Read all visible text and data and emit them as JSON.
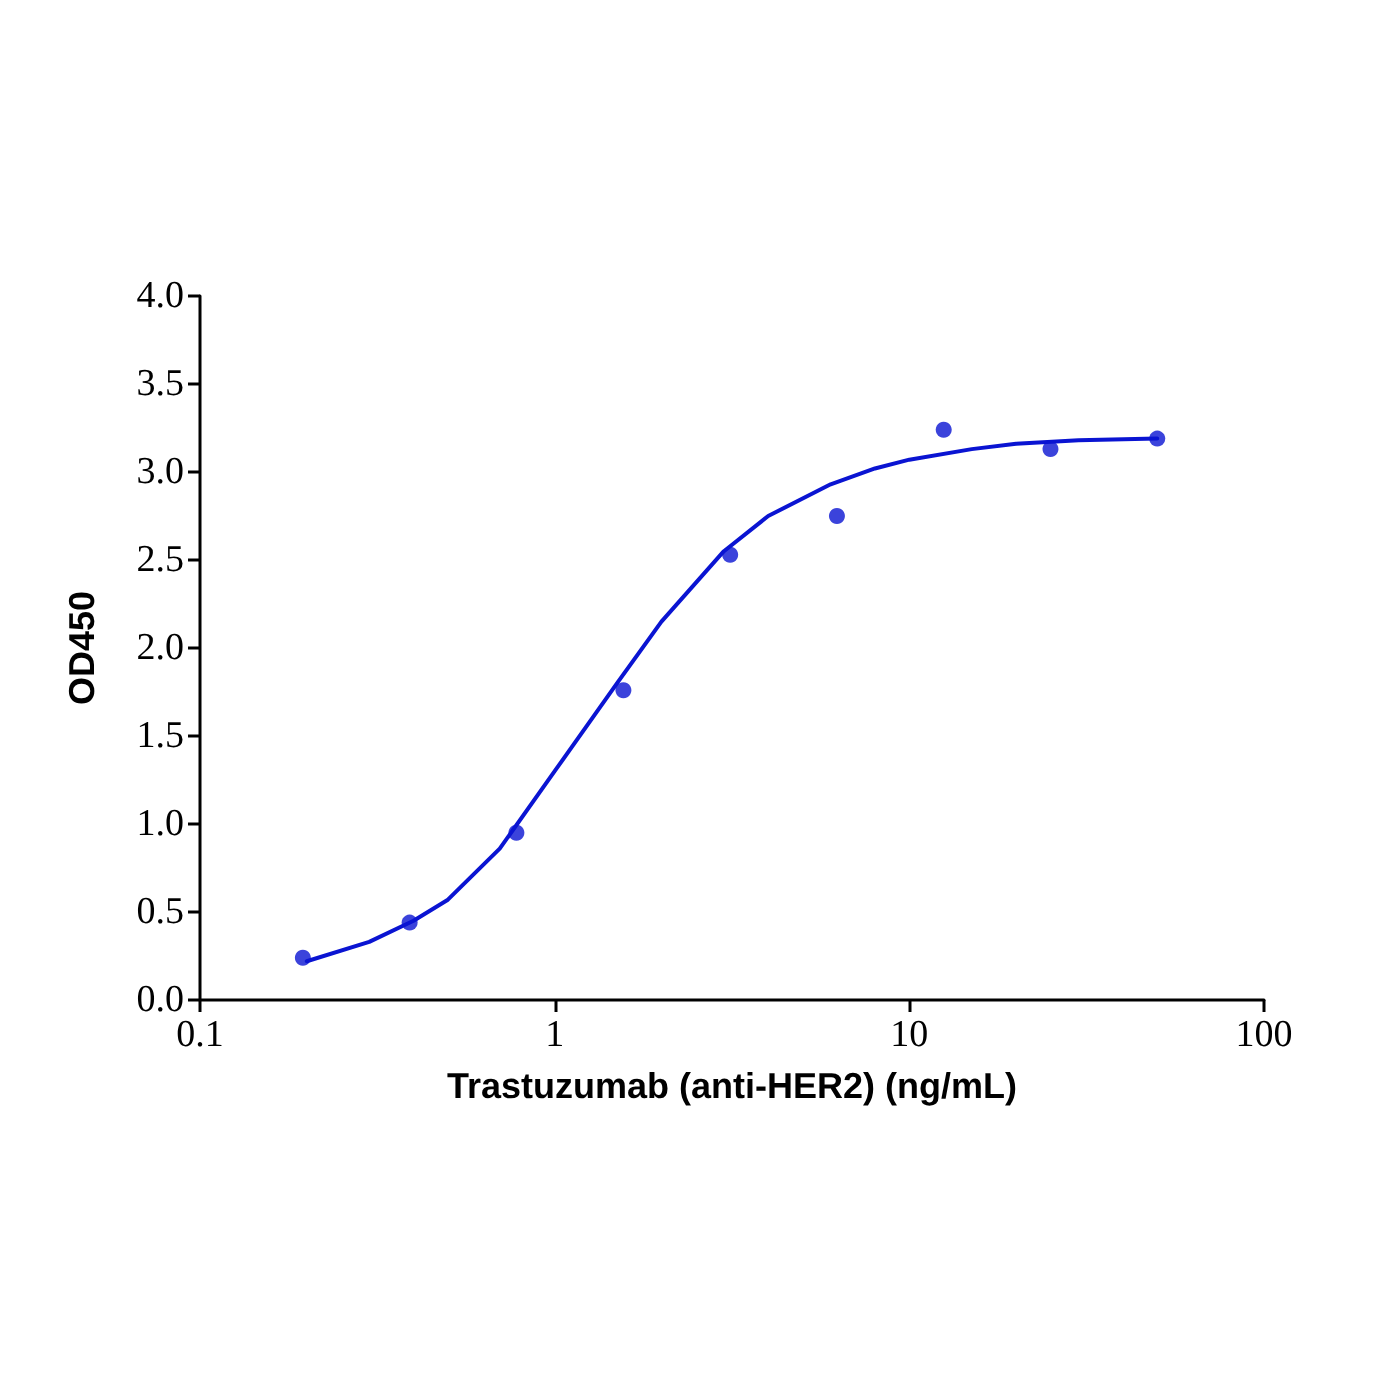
{
  "chart_data": {
    "type": "scatter",
    "xlabel": "Trastuzumab (anti-HER2) (ng/mL)",
    "ylabel": "OD450",
    "log": "x",
    "grid": false,
    "marker": "circle",
    "xlim": [
      0.1,
      100
    ],
    "xticks": [
      0.1,
      1,
      10,
      100
    ],
    "ylim": [
      0,
      4
    ],
    "yticks": [
      {
        "value": 0,
        "label": "0.0"
      },
      {
        "value": 0.5,
        "label": "0.5"
      },
      {
        "value": 1,
        "label": "1.0"
      },
      {
        "value": 1.5,
        "label": "1.5"
      },
      {
        "value": 2,
        "label": "2.0"
      },
      {
        "value": 2.5,
        "label": "2.5"
      },
      {
        "value": 3,
        "label": "3.0"
      },
      {
        "value": 3.5,
        "label": "3.5"
      },
      {
        "value": 4,
        "label": "4.0"
      }
    ],
    "series": [
      {
        "color": "#0a14d2",
        "x": [
          0.195,
          0.39,
          0.78,
          1.5625,
          3.125,
          6.25,
          12.5,
          25,
          50
        ],
        "values": [
          0.24,
          0.44,
          0.95,
          1.76,
          2.53,
          2.75,
          3.24,
          3.13,
          3.19
        ]
      },
      {
        "type": "line",
        "color": "#0a14d2",
        "marker": "none",
        "line_style": "solid",
        "x": [
          0.2,
          0.3,
          0.4,
          0.5,
          0.7,
          1,
          1.5,
          2,
          3,
          4,
          6,
          8,
          10,
          15,
          20,
          30,
          50
        ],
        "values": [
          0.22,
          0.33,
          0.45,
          0.57,
          0.86,
          1.3,
          1.8,
          2.15,
          2.55,
          2.75,
          2.93,
          3.02,
          3.07,
          3.13,
          3.16,
          3.18,
          3.19
        ]
      }
    ]
  }
}
